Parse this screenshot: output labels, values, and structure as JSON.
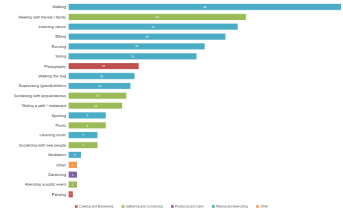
{
  "chart_data": {
    "type": "bar",
    "orientation": "horizontal",
    "stacked": true,
    "data_labels": true,
    "tick_labels": "y",
    "grid": false,
    "legend": "bottom",
    "categories": [
      "Walking",
      "Meeting with friends / family",
      "Listening nature",
      "Biking",
      "Running",
      "Sitting",
      "Photography",
      "Walking the dog",
      "Supervising (grand)children",
      "Socialising with acquaintances",
      "Visiting a café / restaurant",
      "Sporting",
      "Picnic",
      "Listening music",
      "Socializing with new people",
      "Meditation",
      "Other",
      "Gardening",
      "Attending a public event",
      "Painting"
    ],
    "xlim": [
      0,
      66
    ],
    "series": [
      {
        "name": "Creating and Expressing",
        "color": "#c0504d",
        "values": [
          null,
          null,
          null,
          null,
          null,
          null,
          17,
          null,
          null,
          null,
          null,
          null,
          null,
          null,
          null,
          null,
          null,
          null,
          null,
          1
        ]
      },
      {
        "name": "Gathering and Consuming",
        "color": "#9bbb59",
        "values": [
          null,
          43,
          null,
          null,
          null,
          null,
          null,
          null,
          null,
          14,
          13,
          null,
          9,
          null,
          7,
          null,
          null,
          null,
          2,
          null
        ]
      },
      {
        "name": "Producing and Carin",
        "color": "#8064a2",
        "values": [
          null,
          null,
          null,
          null,
          null,
          null,
          null,
          null,
          null,
          null,
          null,
          null,
          null,
          null,
          null,
          null,
          null,
          2,
          null,
          null
        ]
      },
      {
        "name": "Playing and Exercising",
        "color": "#4bacc6",
        "values": [
          66,
          null,
          41,
          38,
          33,
          31,
          null,
          16,
          15,
          null,
          null,
          9,
          null,
          7,
          null,
          3,
          null,
          null,
          null,
          null
        ]
      },
      {
        "name": "Other",
        "color": "#f79646",
        "values": [
          null,
          null,
          null,
          null,
          null,
          null,
          null,
          null,
          null,
          null,
          null,
          null,
          null,
          null,
          null,
          null,
          2,
          null,
          null,
          null
        ]
      }
    ]
  }
}
